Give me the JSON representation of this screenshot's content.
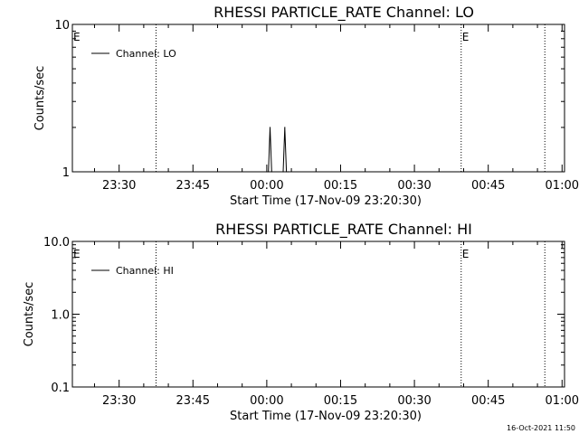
{
  "chart_data": [
    {
      "type": "line",
      "title": "RHESSI PARTICLE_RATE Channel: LO",
      "xlabel": "Start Time (17-Nov-09 23:20:30)",
      "ylabel": "Counts/sec",
      "y_scale": "log",
      "ylim": [
        1,
        10
      ],
      "y_ticks": [
        1,
        10
      ],
      "y_tick_labels": [
        "1",
        "10"
      ],
      "x_range": [
        "23:20:30",
        "01:00:30"
      ],
      "x_ticks": [
        "23:30",
        "23:45",
        "00:00",
        "00:15",
        "00:30",
        "00:45",
        "01:00"
      ],
      "grid": false,
      "legend_position": "top-left",
      "legend": [
        "Channel: LO"
      ],
      "event_markers": [
        {
          "time": "23:37:30",
          "label": "",
          "style": "dotted"
        },
        {
          "time": "00:39:30",
          "label": "E",
          "style": "dotted"
        },
        {
          "time": "00:56:30",
          "label": "",
          "style": "dotted"
        }
      ],
      "left_edge_marker_label": "E",
      "series": [
        {
          "name": "Channel: LO",
          "color": "#000000",
          "x": [
            "00:00:00",
            "00:00:20",
            "00:00:40",
            "00:01:00",
            "00:03:20",
            "00:03:40",
            "00:04:00",
            "00:04:20"
          ],
          "values": [
            1,
            1,
            2,
            1,
            1,
            2,
            1,
            1
          ]
        }
      ]
    },
    {
      "type": "line",
      "title": "RHESSI PARTICLE_RATE Channel: HI",
      "xlabel": "Start Time (17-Nov-09 23:20:30)",
      "ylabel": "Counts/sec",
      "y_scale": "log",
      "ylim": [
        0.1,
        10
      ],
      "y_ticks": [
        0.1,
        1,
        10
      ],
      "y_tick_labels": [
        "0.1",
        "1.0",
        "10.0"
      ],
      "x_range": [
        "23:20:30",
        "01:00:30"
      ],
      "x_ticks": [
        "23:30",
        "23:45",
        "00:00",
        "00:15",
        "00:30",
        "00:45",
        "01:00"
      ],
      "grid": false,
      "legend_position": "top-left",
      "legend": [
        "Channel: HI"
      ],
      "event_markers": [
        {
          "time": "23:37:30",
          "label": "",
          "style": "dotted"
        },
        {
          "time": "00:39:30",
          "label": "E",
          "style": "dotted"
        },
        {
          "time": "00:56:30",
          "label": "",
          "style": "dotted"
        }
      ],
      "left_edge_marker_label": "E",
      "series": [
        {
          "name": "Channel: HI",
          "color": "#000000",
          "x": [],
          "values": []
        }
      ]
    }
  ],
  "footer": {
    "timestamp": "16-Oct-2021 11:50"
  }
}
